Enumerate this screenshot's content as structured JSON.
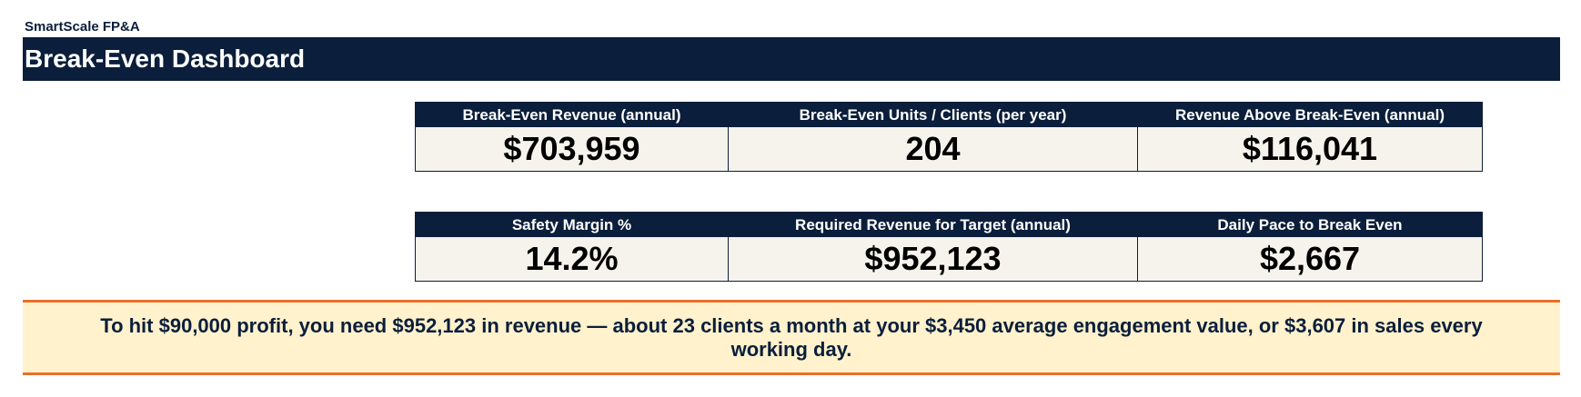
{
  "header": {
    "brand": "SmartScale FP&A",
    "title": "Break-Even Dashboard"
  },
  "kpis_row1": [
    {
      "label": "Break-Even Revenue (annual)",
      "value": "$703,959"
    },
    {
      "label": "Break-Even Units / Clients (per year)",
      "value": "204"
    },
    {
      "label": "Revenue Above Break-Even (annual)",
      "value": "$116,041"
    }
  ],
  "kpis_row2": [
    {
      "label": "Safety Margin %",
      "value": "14.2%"
    },
    {
      "label": "Required Revenue for Target (annual)",
      "value": "$952,123"
    },
    {
      "label": "Daily Pace to Break Even",
      "value": "$2,667"
    }
  ],
  "callout": {
    "text": "To hit $90,000 profit, you need $952,123 in revenue — about 23 clients a month at your $3,450 average engagement value, or $3,607 in sales every working day."
  },
  "colors": {
    "navy": "#0b1e3b",
    "cell_bg": "#f6f3ec",
    "callout_bg": "#fff2cc",
    "callout_border": "#e8702a"
  }
}
